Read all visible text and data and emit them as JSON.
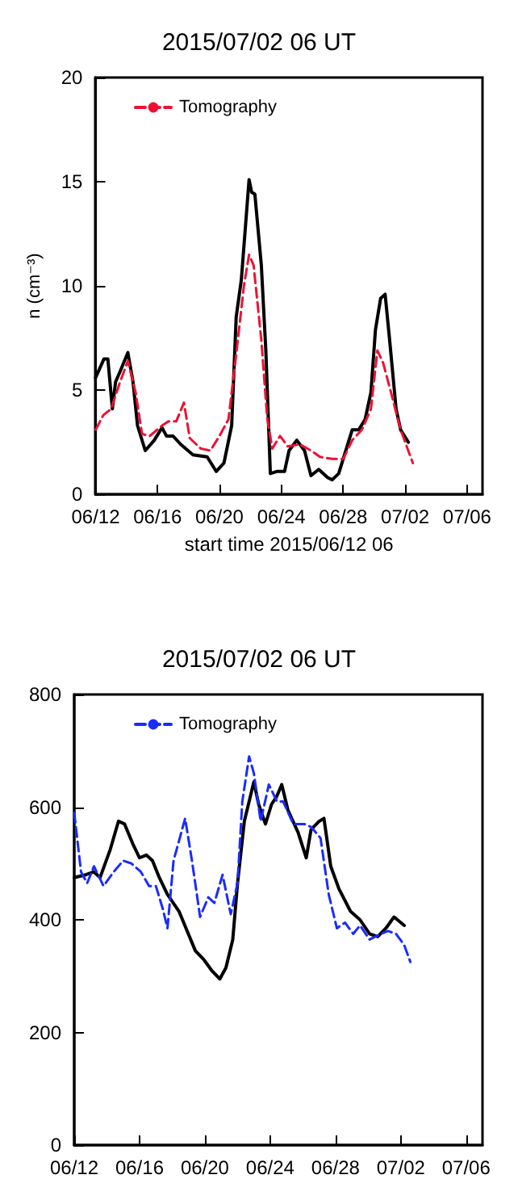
{
  "chart_data": [
    {
      "type": "line",
      "title": "2015/07/02 06 UT",
      "xlabel": "start time 2015/06/12 06",
      "ylabel": "n (cm⁻³)",
      "xlim": [
        "2015-06-12",
        "2015-07-07"
      ],
      "xticks": [
        {
          "value": "2015-06-12",
          "label": "06/12"
        },
        {
          "value": "2015-06-16",
          "label": "06/16"
        },
        {
          "value": "2015-06-20",
          "label": "06/20"
        },
        {
          "value": "2015-06-24",
          "label": "06/24"
        },
        {
          "value": "2015-06-28",
          "label": "06/28"
        },
        {
          "value": "2015-07-02",
          "label": "07/02"
        },
        {
          "value": "2015-07-06",
          "label": "07/06"
        }
      ],
      "ylim": [
        0,
        20
      ],
      "yticks": [
        0,
        5,
        10,
        15,
        20
      ],
      "legend": "top left",
      "marker": "none",
      "series": [
        {
          "color": "#000000",
          "line_style": "solid",
          "x": [
            "2015-06-12T00:00",
            "2015-06-12T13:00",
            "2015-06-12T19:00",
            "2015-06-13T02:00",
            "2015-06-13T07:00",
            "2015-06-13T14:00",
            "2015-06-14T02:00",
            "2015-06-14T10:00",
            "2015-06-14T17:00",
            "2015-06-15T05:00",
            "2015-06-15T19:00",
            "2015-06-16T07:00",
            "2015-06-16T14:00",
            "2015-06-17T00:00",
            "2015-06-17T12:00",
            "2015-06-18T07:00",
            "2015-06-19T05:00",
            "2015-06-19T19:00",
            "2015-06-20T07:00",
            "2015-06-20T19:00",
            "2015-06-21T02:00",
            "2015-06-21T10:00",
            "2015-06-21T17:00",
            "2015-06-21T22:00",
            "2015-06-22T02:00",
            "2015-06-22T07:00",
            "2015-06-22T17:00",
            "2015-06-23T00:00",
            "2015-06-23T07:00",
            "2015-06-23T17:00",
            "2015-06-24T05:00",
            "2015-06-24T12:00",
            "2015-06-25T00:00",
            "2015-06-25T12:00",
            "2015-06-25T22:00",
            "2015-06-26T10:00",
            "2015-06-27T00:00",
            "2015-06-27T07:00",
            "2015-06-27T17:00",
            "2015-06-28T02:00",
            "2015-06-28T14:00",
            "2015-06-29T00:00",
            "2015-06-29T10:00",
            "2015-06-29T19:00",
            "2015-06-30T02:00",
            "2015-06-30T10:00",
            "2015-06-30T17:00",
            "2015-07-01T00:00",
            "2015-07-01T10:00",
            "2015-07-01T17:00",
            "2015-07-02T05:00"
          ],
          "values": [
            5.6,
            6.5,
            6.5,
            4.1,
            5.4,
            5.9,
            6.8,
            5.4,
            3.3,
            2.1,
            2.6,
            3.2,
            2.8,
            2.8,
            2.4,
            1.9,
            1.8,
            1.1,
            1.5,
            3.3,
            8.5,
            10.3,
            13.1,
            15.1,
            14.5,
            14.4,
            11.0,
            6.9,
            1.0,
            1.1,
            1.1,
            2.1,
            2.6,
            2.1,
            0.9,
            1.2,
            0.8,
            0.7,
            1.0,
            1.9,
            3.1,
            3.1,
            3.6,
            4.9,
            7.9,
            9.4,
            9.6,
            7.4,
            4.1,
            3.1,
            2.5
          ]
        },
        {
          "name": "Tomography",
          "color": "#ee1133",
          "line_style": "dashed",
          "x": [
            "2015-06-12T00:00",
            "2015-06-12T12:00",
            "2015-06-13T00:00",
            "2015-06-13T14:00",
            "2015-06-14T02:00",
            "2015-06-14T14:00",
            "2015-06-15T00:00",
            "2015-06-15T12:00",
            "2015-06-16T07:00",
            "2015-06-16T17:00",
            "2015-06-17T05:00",
            "2015-06-17T17:00",
            "2015-06-18T02:00",
            "2015-06-18T19:00",
            "2015-06-19T10:00",
            "2015-06-20T00:00",
            "2015-06-20T14:00",
            "2015-06-21T02:00",
            "2015-06-21T14:00",
            "2015-06-21T22:00",
            "2015-06-22T05:00",
            "2015-06-22T17:00",
            "2015-06-23T02:00",
            "2015-06-23T10:00",
            "2015-06-23T22:00",
            "2015-06-24T10:00",
            "2015-06-25T05:00",
            "2015-06-25T22:00",
            "2015-06-26T12:00",
            "2015-06-27T07:00",
            "2015-06-28T00:00",
            "2015-06-28T14:00",
            "2015-06-29T05:00",
            "2015-06-29T19:00",
            "2015-06-30T05:00",
            "2015-06-30T14:00",
            "2015-07-01T02:00",
            "2015-07-01T17:00",
            "2015-07-02T12:00"
          ],
          "values": [
            3.1,
            3.8,
            4.1,
            5.4,
            6.4,
            4.9,
            2.9,
            2.8,
            3.3,
            3.5,
            3.5,
            4.4,
            2.7,
            2.2,
            2.1,
            2.8,
            3.6,
            6.7,
            10.0,
            11.5,
            11.0,
            7.4,
            3.7,
            2.2,
            2.8,
            2.3,
            2.4,
            2.1,
            1.8,
            1.7,
            1.7,
            2.6,
            3.1,
            4.1,
            6.9,
            6.3,
            4.9,
            3.1,
            1.5
          ]
        }
      ]
    },
    {
      "type": "line",
      "title": "2015/07/02 06 UT",
      "xlim": [
        "2015-06-12",
        "2015-07-07"
      ],
      "xticks": [
        {
          "value": "2015-06-12",
          "label": "06/12"
        },
        {
          "value": "2015-06-16",
          "label": "06/16"
        },
        {
          "value": "2015-06-20",
          "label": "06/20"
        },
        {
          "value": "2015-06-24",
          "label": "06/24"
        },
        {
          "value": "2015-06-28",
          "label": "06/28"
        },
        {
          "value": "2015-07-02",
          "label": "07/02"
        },
        {
          "value": "2015-07-06",
          "label": "07/06"
        }
      ],
      "ylim": [
        0,
        800
      ],
      "yticks": [
        0,
        200,
        400,
        600,
        800
      ],
      "legend": "top left",
      "marker": "none",
      "series": [
        {
          "color": "#000000",
          "line_style": "solid",
          "x": [
            "2015-06-12T00:00",
            "2015-06-12T17:00",
            "2015-06-13T05:00",
            "2015-06-13T14:00",
            "2015-06-14T05:00",
            "2015-06-14T17:00",
            "2015-06-15T02:00",
            "2015-06-15T14:00",
            "2015-06-16T00:00",
            "2015-06-16T10:00",
            "2015-06-16T19:00",
            "2015-06-17T05:00",
            "2015-06-17T17:00",
            "2015-06-18T10:00",
            "2015-06-18T22:00",
            "2015-06-19T10:00",
            "2015-06-19T22:00",
            "2015-06-20T10:00",
            "2015-06-20T22:00",
            "2015-06-21T07:00",
            "2015-06-21T17:00",
            "2015-06-22T00:00",
            "2015-06-22T10:00",
            "2015-06-23T00:00",
            "2015-06-23T07:00",
            "2015-06-23T17:00",
            "2015-06-24T02:00",
            "2015-06-24T10:00",
            "2015-06-24T17:00",
            "2015-06-25T02:00",
            "2015-06-25T17:00",
            "2015-06-26T05:00",
            "2015-06-26T12:00",
            "2015-06-27T00:00",
            "2015-06-27T07:00",
            "2015-06-27T17:00",
            "2015-06-28T05:00",
            "2015-06-28T22:00",
            "2015-06-29T12:00",
            "2015-06-30T02:00",
            "2015-06-30T14:00",
            "2015-07-01T02:00",
            "2015-07-01T14:00",
            "2015-07-02T05:00"
          ],
          "values": [
            475,
            480,
            485,
            475,
            525,
            575,
            570,
            535,
            510,
            515,
            505,
            475,
            445,
            415,
            380,
            345,
            330,
            310,
            295,
            315,
            365,
            465,
            575,
            645,
            605,
            570,
            605,
            620,
            640,
            595,
            555,
            510,
            560,
            575,
            580,
            495,
            455,
            415,
            400,
            375,
            370,
            385,
            405,
            390
          ]
        },
        {
          "name": "Tomography",
          "color": "#1a2bff",
          "line_style": "dashed",
          "x": [
            "2015-06-12T00:00",
            "2015-06-12T10:00",
            "2015-06-12T19:00",
            "2015-06-13T05:00",
            "2015-06-13T19:00",
            "2015-06-14T10:00",
            "2015-06-15T00:00",
            "2015-06-15T12:00",
            "2015-06-16T02:00",
            "2015-06-16T14:00",
            "2015-06-17T00:00",
            "2015-06-17T10:00",
            "2015-06-17T17:00",
            "2015-06-18T02:00",
            "2015-06-18T19:00",
            "2015-06-19T05:00",
            "2015-06-19T17:00",
            "2015-06-20T05:00",
            "2015-06-20T14:00",
            "2015-06-21T02:00",
            "2015-06-21T14:00",
            "2015-06-22T00:00",
            "2015-06-22T07:00",
            "2015-06-22T17:00",
            "2015-06-23T00:00",
            "2015-06-23T10:00",
            "2015-06-23T22:00",
            "2015-06-24T10:00",
            "2015-06-24T19:00",
            "2015-06-25T10:00",
            "2015-06-26T02:00",
            "2015-06-26T12:00",
            "2015-06-27T02:00",
            "2015-06-27T14:00",
            "2015-06-28T02:00",
            "2015-06-28T14:00",
            "2015-06-29T02:00",
            "2015-06-29T12:00",
            "2015-06-30T02:00",
            "2015-06-30T19:00",
            "2015-07-01T05:00",
            "2015-07-01T17:00",
            "2015-07-02T05:00",
            "2015-07-02T14:00"
          ],
          "values": [
            590,
            485,
            465,
            495,
            460,
            485,
            505,
            500,
            485,
            460,
            460,
            420,
            385,
            505,
            580,
            505,
            405,
            440,
            430,
            480,
            410,
            465,
            610,
            690,
            660,
            575,
            640,
            610,
            610,
            570,
            570,
            565,
            545,
            445,
            385,
            395,
            375,
            390,
            365,
            375,
            380,
            375,
            355,
            325
          ]
        }
      ]
    }
  ]
}
